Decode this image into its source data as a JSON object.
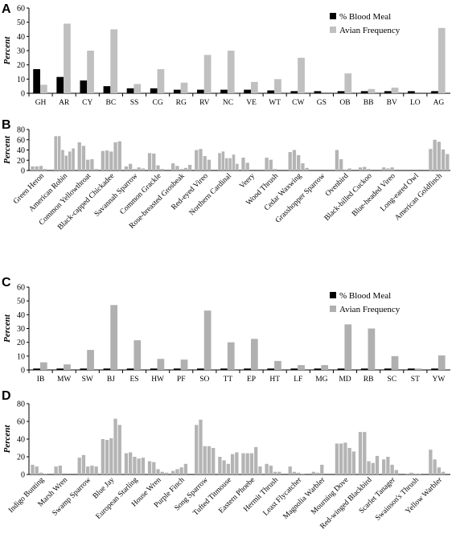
{
  "chart_data": [
    {
      "panel": "A",
      "type": "bar",
      "ylabel": "Percent",
      "ylim": [
        0,
        60
      ],
      "yticks": [
        0,
        10,
        20,
        30,
        40,
        50,
        60
      ],
      "legend": "top-right",
      "categories": [
        "GH",
        "AR",
        "CY",
        "BC",
        "SS",
        "CG",
        "RG",
        "RV",
        "NC",
        "VE",
        "WT",
        "CW",
        "GS",
        "OB",
        "BB",
        "BV",
        "LO",
        "AG"
      ],
      "series": [
        {
          "name": "% Blood Meal",
          "color": "#000000",
          "values": [
            17,
            11.5,
            9,
            5,
            3.5,
            3.5,
            2.5,
            2.5,
            2.5,
            2.5,
            2,
            1.5,
            1.5,
            1.5,
            1.5,
            1.5,
            1.5,
            1.5
          ]
        },
        {
          "name": "Avian Frequency",
          "color": "#c0c0c0",
          "values": [
            6,
            49,
            30,
            45,
            6.5,
            17,
            7.5,
            27,
            30,
            8,
            10,
            25,
            0,
            14,
            3,
            4,
            0,
            46
          ]
        }
      ]
    },
    {
      "panel": "B",
      "type": "bar",
      "ylabel": "Percent",
      "ylim": [
        0,
        80
      ],
      "yticks": [
        0,
        20,
        40,
        60,
        80
      ],
      "color": "#b4b4b4",
      "groups": [
        {
          "label": "Green Heron",
          "values": [
            8,
            8,
            9,
            3
          ]
        },
        {
          "label": "American Robin",
          "values": [
            67,
            67,
            40,
            29,
            37,
            43
          ]
        },
        {
          "label": "Common Yellowthroat",
          "values": [
            55,
            48,
            21,
            22,
            3
          ]
        },
        {
          "label": "Black-capped Chickadee",
          "values": [
            38,
            39,
            37,
            55,
            57
          ]
        },
        {
          "label": "Savannah Sparrow",
          "values": [
            8,
            13,
            3,
            6,
            4
          ]
        },
        {
          "label": "Common Grackle",
          "values": [
            34,
            33,
            10,
            3
          ]
        },
        {
          "label": "Rose-breasted Grosbeak",
          "values": [
            14,
            9,
            3,
            5,
            11
          ]
        },
        {
          "label": "Red-eyed Vireo",
          "values": [
            40,
            42,
            28,
            21
          ]
        },
        {
          "label": "Northern Cardinal",
          "values": [
            34,
            37,
            24,
            24,
            31,
            13
          ]
        },
        {
          "label": "Veery",
          "values": [
            25,
            15
          ]
        },
        {
          "label": "Wood Thrush",
          "values": [
            25,
            21,
            3
          ]
        },
        {
          "label": "Cedar Waxwing",
          "values": [
            36,
            40,
            30,
            14,
            5
          ]
        },
        {
          "label": "Grasshopper Sparrow",
          "values": [
            0
          ]
        },
        {
          "label": "Ovenbird",
          "values": [
            40,
            22,
            2,
            4
          ]
        },
        {
          "label": "Black-billed Cuckoo",
          "values": [
            6,
            7,
            3
          ]
        },
        {
          "label": "Blue-headed Vireo",
          "values": [
            6,
            4,
            6
          ]
        },
        {
          "label": "Long-eared Owl",
          "values": [
            0
          ]
        },
        {
          "label": "American Goldfinch",
          "values": [
            42,
            60,
            56,
            41,
            32
          ]
        }
      ]
    },
    {
      "panel": "C",
      "type": "bar",
      "ylabel": "Percent",
      "ylim": [
        0,
        60
      ],
      "yticks": [
        0,
        10,
        20,
        30,
        40,
        50,
        60
      ],
      "legend": "top-right",
      "categories": [
        "IB",
        "MW",
        "SW",
        "BJ",
        "ES",
        "HW",
        "PF",
        "SO",
        "TT",
        "EP",
        "HT",
        "LF",
        "MG",
        "MD",
        "RB",
        "SC",
        "ST",
        "YW"
      ],
      "series": [
        {
          "name": "% Blood Meal",
          "color": "#000000",
          "values": [
            1,
            1,
            1,
            1,
            1,
            1,
            1,
            1,
            1,
            1,
            1,
            1,
            1,
            1,
            1,
            1,
            1,
            1
          ]
        },
        {
          "name": "Avian Frequency",
          "color": "#b0b0b0",
          "values": [
            5.5,
            4,
            14.5,
            47,
            21.5,
            8,
            7.5,
            43,
            20,
            22.5,
            6.5,
            3.5,
            3.5,
            33,
            30,
            10,
            1,
            10.5
          ]
        }
      ]
    },
    {
      "panel": "D",
      "type": "bar",
      "ylabel": "Percent",
      "ylim": [
        0,
        80
      ],
      "yticks": [
        0,
        20,
        40,
        60,
        80
      ],
      "color": "#b4b4b4",
      "groups": [
        {
          "label": "Indigo Bunting",
          "values": [
            11,
            9,
            2,
            1
          ]
        },
        {
          "label": "Marsh Wren",
          "values": [
            9,
            10
          ]
        },
        {
          "label": "Swamp Sparrow",
          "values": [
            19,
            22,
            9,
            10,
            9
          ]
        },
        {
          "label": "Blue Jay",
          "values": [
            40,
            39,
            41,
            63,
            56
          ]
        },
        {
          "label": "European Starling",
          "values": [
            24,
            25,
            20,
            18,
            19
          ]
        },
        {
          "label": "House Wren",
          "values": [
            15,
            14,
            6,
            3,
            2
          ]
        },
        {
          "label": "Purple Finch",
          "values": [
            4,
            6,
            8,
            12
          ]
        },
        {
          "label": "Song Sparrow",
          "values": [
            56,
            62,
            32,
            32,
            30
          ]
        },
        {
          "label": "Tufted Titmouse",
          "values": [
            20,
            16,
            12,
            23,
            25
          ]
        },
        {
          "label": "Eastern Phoebe",
          "values": [
            24,
            24,
            24,
            31,
            9
          ]
        },
        {
          "label": "Hermit Thrush",
          "values": [
            12,
            10,
            3,
            3
          ]
        },
        {
          "label": "Least Flycatcher",
          "values": [
            9,
            3,
            2,
            1
          ]
        },
        {
          "label": "Magnolia Warbler",
          "values": [
            3,
            2,
            11
          ]
        },
        {
          "label": "Mourning Dove",
          "values": [
            35,
            35,
            36,
            30,
            26
          ]
        },
        {
          "label": "Red-winged Blackbird",
          "values": [
            48,
            48,
            15,
            13,
            21
          ]
        },
        {
          "label": "Scarlet Tanager",
          "values": [
            17,
            20,
            11,
            5
          ]
        },
        {
          "label": "Swainson's Thrush",
          "values": [
            1,
            2,
            1,
            1
          ]
        },
        {
          "label": "Yellow Warbler",
          "values": [
            28,
            17,
            8,
            3
          ]
        }
      ]
    }
  ]
}
